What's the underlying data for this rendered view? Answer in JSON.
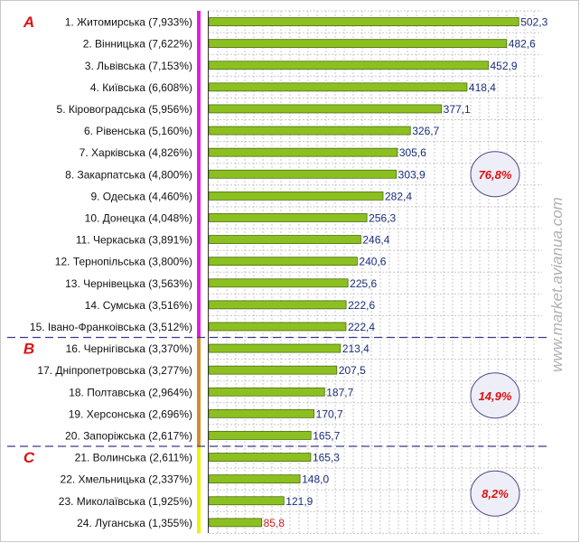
{
  "chart_data": {
    "type": "bar",
    "orientation": "horizontal",
    "categories": [
      "1. Житомирська (7,933%)",
      "2. Вінницька (7,622%)",
      "3. Львівська (7,153%)",
      "4. Київська (6,608%)",
      "5. Кіровоградська (5,956%)",
      "6. Рівенська (5,160%)",
      "7. Харківська (4,826%)",
      "8. Закарпатська (4,800%)",
      "9. Одеська (4,460%)",
      "10. Донецка (4,048%)",
      "11. Черкаська (3,891%)",
      "12. Тернопільська (3,800%)",
      "13. Чернівецька (3,563%)",
      "14. Сумська (3,516%)",
      "15. Івано-Франкоівська (3,512%)",
      "16. Чернігівська (3,370%)",
      "17. Дніпропетровська (3,277%)",
      "18. Полтавська (2,964%)",
      "19. Херсонська (2,696%)",
      "20. Запоріжська (2,617%)",
      "21. Волинська (2,611%)",
      "22. Хмельницька (2,337%)",
      "23. Миколаївська (1,925%)",
      "24. Луганська (1,355%)"
    ],
    "values": [
      502.3,
      482.6,
      452.9,
      418.4,
      377.1,
      326.7,
      305.6,
      303.9,
      282.4,
      256.3,
      246.4,
      240.6,
      225.6,
      222.6,
      222.4,
      213.4,
      207.5,
      187.7,
      170.7,
      165.7,
      165.3,
      148.0,
      121.9,
      85.8
    ],
    "value_labels": [
      "502,3",
      "482,6",
      "452,9",
      "418,4",
      "377,1",
      "326,7",
      "305,6",
      "303,9",
      "282,4",
      "256,3",
      "246,4",
      "240,6",
      "225,6",
      "222,6",
      "222,4",
      "213,4",
      "207,5",
      "187,7",
      "170,7",
      "165,7",
      "165,3",
      "148,0",
      "121,9",
      "85,8"
    ],
    "xlim": [
      0,
      540
    ],
    "grid": true,
    "groups": [
      {
        "letter": "A",
        "share": "76,8%",
        "first": 0,
        "last": 14,
        "band_color": "#e020e0"
      },
      {
        "letter": "B",
        "share": "14,9%",
        "first": 15,
        "last": 19,
        "band_color": "#d98a2b"
      },
      {
        "letter": "C",
        "share": "8,2%",
        "first": 20,
        "last": 23,
        "band_color": "#f0f000"
      }
    ],
    "watermark": "www.market.avianua.com",
    "colors": {
      "bar_fill": "#8cc020",
      "bar_stroke": "#4a6e10",
      "value_label": "#1a2e7a",
      "last_value_label": "#cc2222",
      "group_letter": "#dd1111",
      "group_share": "#dd1111",
      "ellipse_fill": "#eeeef8",
      "ellipse_stroke": "#4a4a8a",
      "separator": "#3a3a8a",
      "grid": "#c8c8c8",
      "axis": "#333333",
      "watermark": "#b0b0b0"
    }
  }
}
